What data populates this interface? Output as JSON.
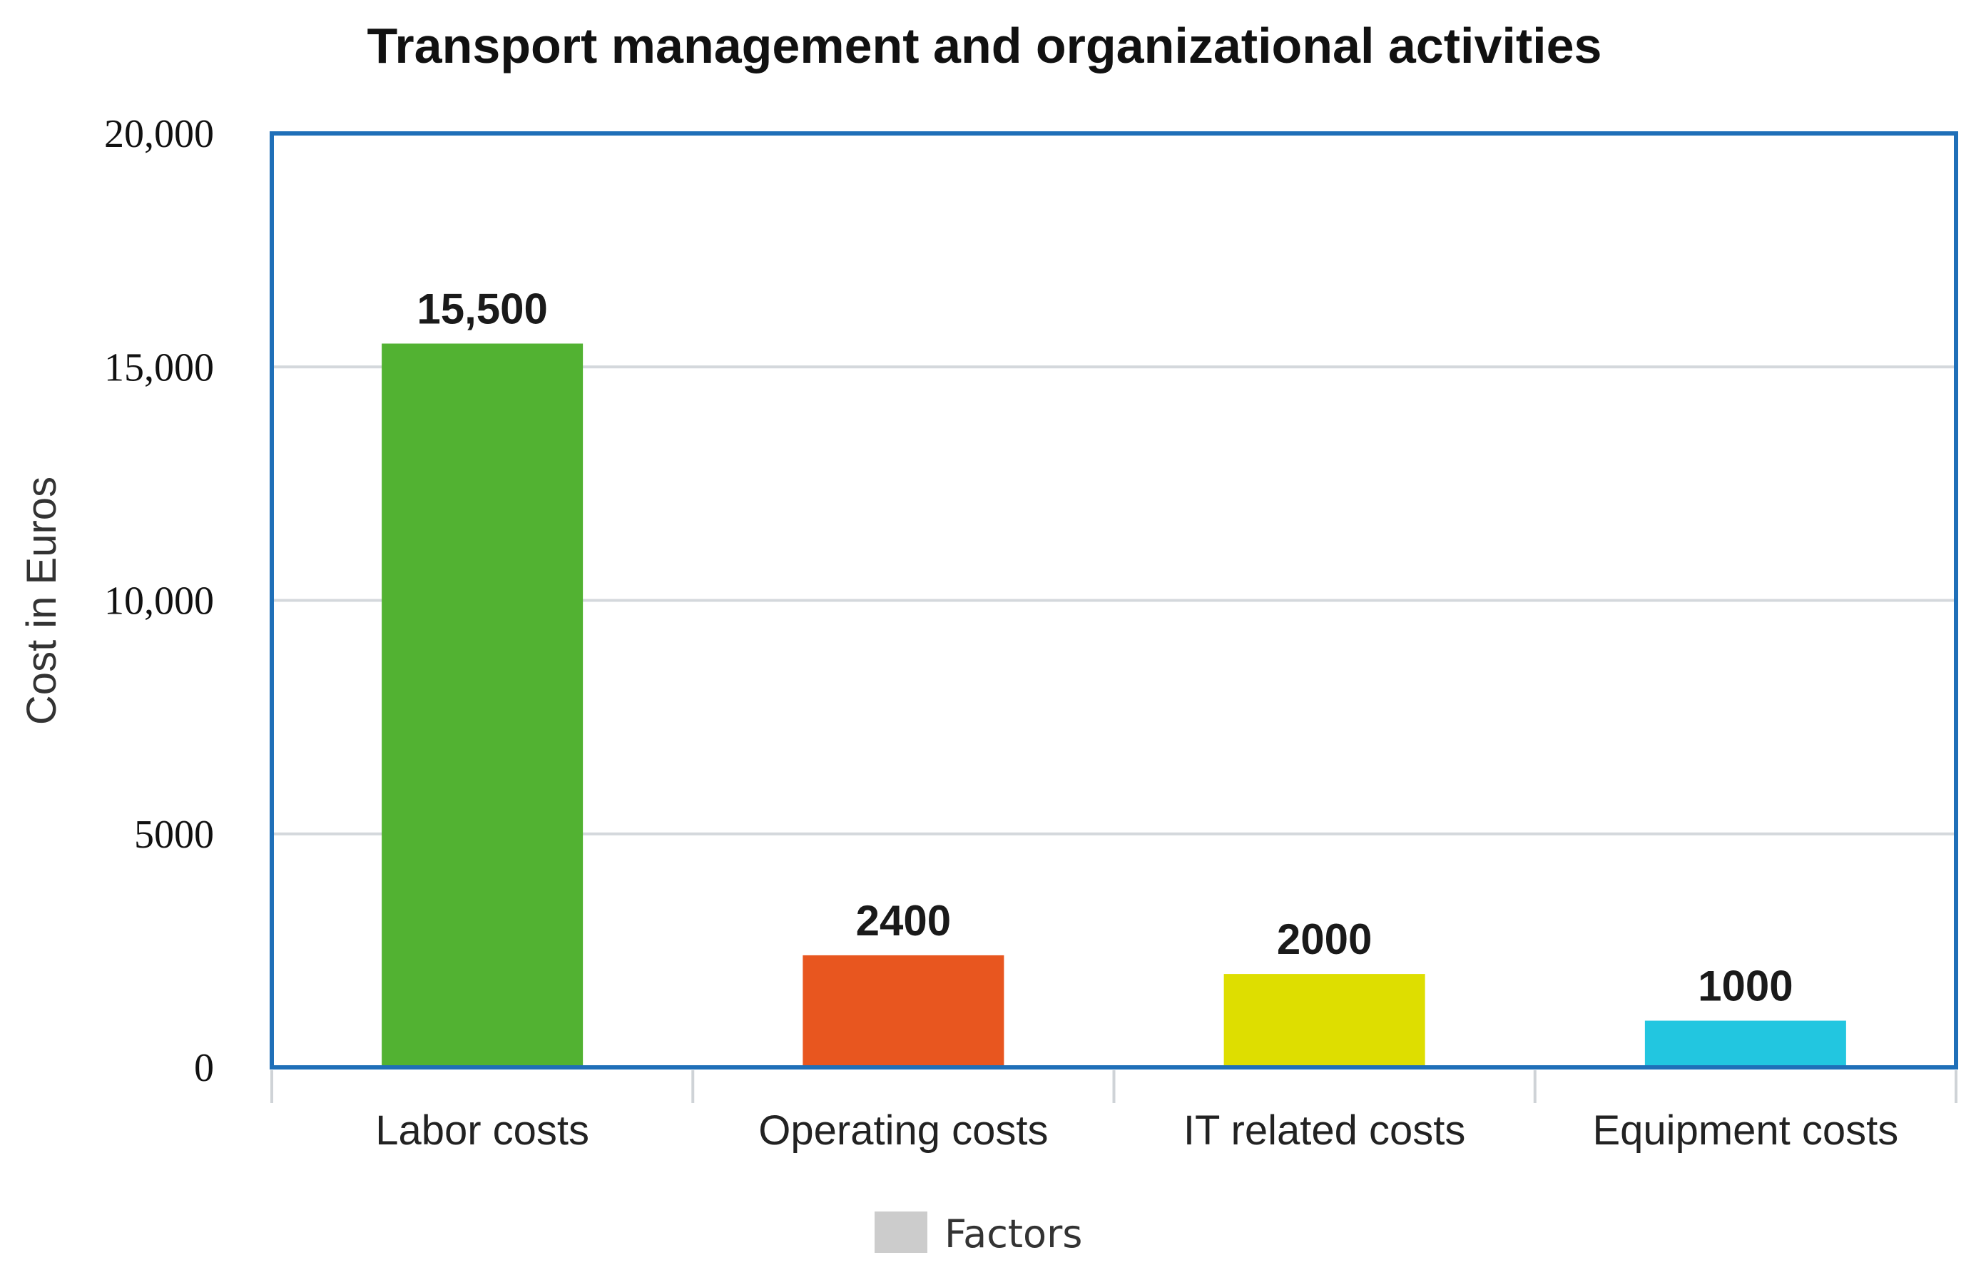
{
  "chart_data": {
    "type": "bar",
    "title": "Transport management and organizational activities",
    "ylabel": "Cost in Euros",
    "xlabel": "",
    "ylim": [
      0,
      20000
    ],
    "yticks": [
      0,
      5000,
      10000,
      15000,
      20000
    ],
    "ytick_labels": [
      "0",
      "5000",
      "10,000",
      "15,000",
      "20,000"
    ],
    "grid": true,
    "categories": [
      "Labor costs",
      "Operating costs",
      "IT related costs",
      "Equipment costs"
    ],
    "values": [
      15500,
      2400,
      2000,
      1000
    ],
    "data_labels": [
      "15,500",
      "2400",
      "2000",
      "1000"
    ],
    "colors": [
      "#52b232",
      "#e8561f",
      "#dede00",
      "#22c6e0"
    ],
    "legend": {
      "label": "Factors",
      "color": "#cccccc",
      "position": "bottom-center"
    },
    "frame_color": "#1f6fb8",
    "grid_color": "#d4d8dc"
  }
}
